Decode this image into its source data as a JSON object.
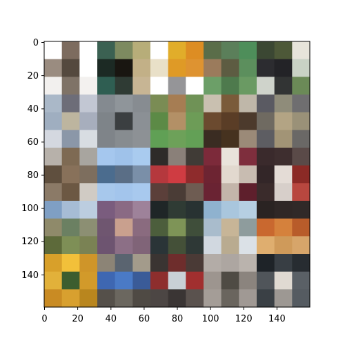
{
  "figure": {
    "x_ticks": [
      "0",
      "20",
      "40",
      "60",
      "80",
      "100",
      "120",
      "140"
    ],
    "y_ticks": [
      "0",
      "20",
      "40",
      "60",
      "80",
      "100",
      "120",
      "140"
    ],
    "xlim": [
      0,
      160
    ],
    "ylim": [
      160,
      0
    ],
    "axis_color": "#000000",
    "grid": false
  },
  "tiles": [
    {
      "name": "dog-on-white-tile",
      "c": [
        "#ffffff",
        "#7d6c5f",
        "#ffffff",
        "#9a8c80",
        "#54493e",
        "#ffffff",
        "#f2f0ee",
        "#7f7367",
        "#f3f1ef"
      ]
    },
    {
      "name": "dog-in-doorway-tile",
      "c": [
        "#3b6152",
        "#7d8a60",
        "#b7ad79",
        "#1c2a24",
        "#191611",
        "#c2b087",
        "#2f5e52",
        "#2f3b34",
        "#c7b594"
      ]
    },
    {
      "name": "orange-truck-tile",
      "c": [
        "#ffffff",
        "#e1ad2a",
        "#dd8d23",
        "#e9e0c8",
        "#df9a26",
        "#de9331",
        "#ffffff",
        "#959598",
        "#ffffff"
      ]
    },
    {
      "name": "deer-in-grass-tile",
      "c": [
        "#5a6d49",
        "#5b7f5a",
        "#4e8e5a",
        "#9b7b5c",
        "#5d5c42",
        "#5c8f5d",
        "#6c9f68",
        "#4e7a4d",
        "#6a9a63"
      ]
    },
    {
      "name": "dark-frog-tile",
      "c": [
        "#3b4733",
        "#4d5838",
        "#e7e4da",
        "#2c2c30",
        "#232327",
        "#c9d2c5",
        "#cfd3cb",
        "#323434",
        "#6b8a57"
      ]
    },
    {
      "name": "deer-in-snow-tile",
      "c": [
        "#aab8c8",
        "#6d6d78",
        "#c2c7d3",
        "#9faec0",
        "#bdb59f",
        "#a7aebd",
        "#d4d8e0",
        "#8b97a8",
        "#d8dde2"
      ]
    },
    {
      "name": "airplane-in-sky-tile",
      "c": [
        "#848a90",
        "#8f959a",
        "#878c91",
        "#7e8489",
        "#3b3f41",
        "#8b9095",
        "#7f8489",
        "#878c90",
        "#8d9195"
      ]
    },
    {
      "name": "fawn-in-field-tile",
      "c": [
        "#7a8c54",
        "#a67d53",
        "#6f9256",
        "#5c8a46",
        "#b39066",
        "#6d9c57",
        "#60a055",
        "#6da159",
        "#63a056"
      ]
    },
    {
      "name": "horse-head-tile",
      "c": [
        "#c9c0b0",
        "#7a5b3a",
        "#bfb7a9",
        "#6b4a2f",
        "#5a3d26",
        "#4c3a2c",
        "#3a2c22",
        "#46321f",
        "#9b8a78"
      ]
    },
    {
      "name": "toad-on-gray-tile",
      "c": [
        "#5a5a62",
        "#8f8c7a",
        "#6f6e70",
        "#6f6a61",
        "#b3a484",
        "#9a9178",
        "#5d5d62",
        "#a29476",
        "#6a6866"
      ]
    },
    {
      "name": "deer-by-mountain-tile",
      "c": [
        "#b7b1aa",
        "#7e6a53",
        "#a8a59f",
        "#5f4f3e",
        "#88715a",
        "#7d6e5e",
        "#8b7a67",
        "#6c5843",
        "#d0cbc4"
      ]
    },
    {
      "name": "propeller-plane-tile",
      "c": [
        "#a5c7ee",
        "#9fc2ea",
        "#a9cbef",
        "#4b6c8e",
        "#5a6e86",
        "#7a8fa8",
        "#a7c8ec",
        "#a3c5ec",
        "#a8c9ee"
      ]
    },
    {
      "name": "red-car-front-tile",
      "c": [
        "#2e2b29",
        "#8a8079",
        "#403b36",
        "#b5383d",
        "#cf3c42",
        "#8e2b2c",
        "#5b3f3a",
        "#4a3c36",
        "#6e5c52"
      ]
    },
    {
      "name": "white-puppy-tile",
      "c": [
        "#7c2a3a",
        "#e9e3db",
        "#7e2e3d",
        "#6d2432",
        "#e2d9cf",
        "#c8bcb1",
        "#6a2333",
        "#c3b5aa",
        "#5e1f2c"
      ]
    },
    {
      "name": "cat-with-red-box-tile",
      "c": [
        "#3a2a2c",
        "#3e2e2f",
        "#5a4a48",
        "#332628",
        "#e4dcd6",
        "#8b2a26",
        "#3a2b2b",
        "#d7cfca",
        "#b8473f"
      ]
    },
    {
      "name": "dump-truck-tile",
      "c": [
        "#7f9fc4",
        "#a6bcd5",
        "#bccde0",
        "#8f8a6a",
        "#6b8062",
        "#8c8f73",
        "#5d6a3a",
        "#7e8f56",
        "#7a8254"
      ]
    },
    {
      "name": "puppy-on-purple-tile",
      "c": [
        "#7a5c7e",
        "#8a6a84",
        "#9e829a",
        "#6f5670",
        "#c9a08e",
        "#8a6b7f",
        "#6d5470",
        "#8c6f86",
        "#806478"
      ]
    },
    {
      "name": "frog-on-dark-tile",
      "c": [
        "#1f2627",
        "#2f3b34",
        "#283232",
        "#4c5e3c",
        "#7e9457",
        "#3f4e3a",
        "#2a3437",
        "#445038",
        "#2e3836"
      ]
    },
    {
      "name": "toad-on-blue-tile",
      "c": [
        "#8fb2cf",
        "#a9c6dd",
        "#b6cfe3",
        "#a9bccc",
        "#c7b597",
        "#8e9c9d",
        "#d1d8e0",
        "#b9ab90",
        "#dbe1e7"
      ]
    },
    {
      "name": "orange-pickup-tile",
      "c": [
        "#2a2322",
        "#2f2726",
        "#302928",
        "#c9682f",
        "#d5813c",
        "#b85c2a",
        "#dfae6f",
        "#cf9a5a",
        "#d7a56a"
      ]
    },
    {
      "name": "framed-dog-tile",
      "c": [
        "#d8a02a",
        "#f2c03a",
        "#cf9529",
        "#e2b13a",
        "#3c5d2f",
        "#d29a2a",
        "#c98b23",
        "#d8a02f",
        "#b9861e"
      ]
    },
    {
      "name": "blue-sedan-tile",
      "c": [
        "#8c8476",
        "#5a6470",
        "#a39b8b",
        "#3e67b2",
        "#4a7ac6",
        "#3a5b98",
        "#55504a",
        "#6b675f",
        "#4f4a44"
      ]
    },
    {
      "name": "red-sports-car-tile",
      "c": [
        "#3a3432",
        "#6e2d2c",
        "#4a3a36",
        "#8e2e2d",
        "#c9d0d6",
        "#a12f2f",
        "#4c4644",
        "#3a3534",
        "#5a524e"
      ]
    },
    {
      "name": "frog-on-gray-tile",
      "c": [
        "#b3aca7",
        "#ada6a1",
        "#bab3ad",
        "#9d958f",
        "#4f4b44",
        "#8b847e",
        "#a49d97",
        "#6a655e",
        "#a09994"
      ]
    },
    {
      "name": "white-dog-standing-tile",
      "c": [
        "#1e2328",
        "#383e44",
        "#272c31",
        "#50555a",
        "#e0dad2",
        "#5a6066",
        "#3a4045",
        "#9d9893",
        "#555b61"
      ]
    }
  ]
}
